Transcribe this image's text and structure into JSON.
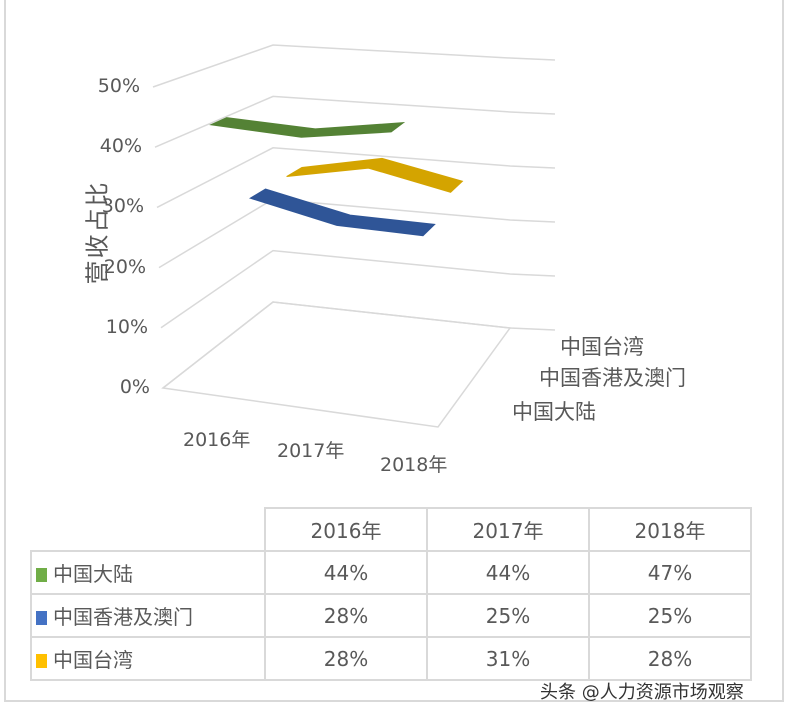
{
  "chart_data": {
    "type": "line",
    "variant": "3d-line",
    "ylabel": "营收占比",
    "ylim": [
      0,
      50
    ],
    "yticks": [
      "0%",
      "10%",
      "20%",
      "30%",
      "40%",
      "50%"
    ],
    "categories": [
      "2016年",
      "2017年",
      "2018年"
    ],
    "depth_labels": [
      "中国大陆",
      "中国香港及澳门",
      "中国台湾"
    ],
    "series": [
      {
        "name": "中国大陆",
        "values": [
          44,
          44,
          47
        ],
        "color": "#548235"
      },
      {
        "name": "中国香港及澳门",
        "values": [
          28,
          25,
          25
        ],
        "color": "#2f5597"
      },
      {
        "name": "中国台湾",
        "values": [
          28,
          31,
          28
        ],
        "color": "#d4a400"
      }
    ],
    "table": {
      "headers": [
        "2016年",
        "2017年",
        "2018年"
      ],
      "rows": [
        {
          "label": "中国大陆",
          "values": [
            "44%",
            "44%",
            "47%"
          ]
        },
        {
          "label": "中国香港及澳门",
          "values": [
            "28%",
            "25%",
            "25%"
          ]
        },
        {
          "label": "中国台湾",
          "values": [
            "28%",
            "31%",
            "28%"
          ]
        }
      ]
    },
    "grid": true
  },
  "watermark": "头条 @人力资源市场观察"
}
